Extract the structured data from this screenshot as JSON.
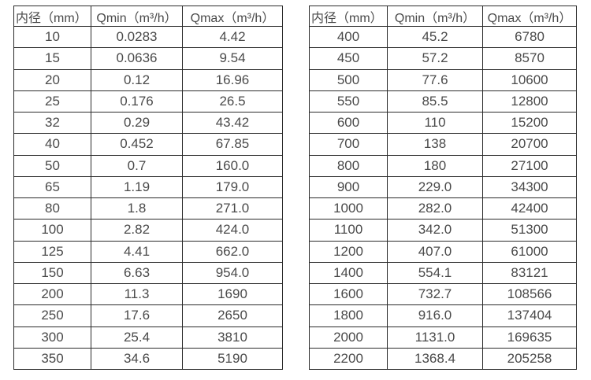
{
  "colors": {
    "background": "#ffffff",
    "table_border": "#2b2b2b",
    "text": "#4a4a4a"
  },
  "chart_data": [
    {
      "type": "table",
      "title": "",
      "columns": [
        "内径（mm）",
        "Qmin（m³/h）",
        "Qmax（m³/h）"
      ],
      "rows": [
        [
          "10",
          "0.0283",
          "4.42"
        ],
        [
          "15",
          "0.0636",
          "9.54"
        ],
        [
          "20",
          "0.12",
          "16.96"
        ],
        [
          "25",
          "0.176",
          "26.5"
        ],
        [
          "32",
          "0.29",
          "43.42"
        ],
        [
          "40",
          "0.452",
          "67.85"
        ],
        [
          "50",
          "0.7",
          "160.0"
        ],
        [
          "65",
          "1.19",
          "179.0"
        ],
        [
          "80",
          "1.8",
          "271.0"
        ],
        [
          "100",
          "2.82",
          "424.0"
        ],
        [
          "125",
          "4.41",
          "662.0"
        ],
        [
          "150",
          "6.63",
          "954.0"
        ],
        [
          "200",
          "11.3",
          "1690"
        ],
        [
          "250",
          "17.6",
          "2650"
        ],
        [
          "300",
          "25.4",
          "3810"
        ],
        [
          "350",
          "34.6",
          "5190"
        ]
      ]
    },
    {
      "type": "table",
      "title": "",
      "columns": [
        "内径（mm）",
        "Qmin（m³/h）",
        "Qmax（m³/h）"
      ],
      "rows": [
        [
          "400",
          "45.2",
          "6780"
        ],
        [
          "450",
          "57.2",
          "8570"
        ],
        [
          "500",
          "77.6",
          "10600"
        ],
        [
          "550",
          "85.5",
          "12800"
        ],
        [
          "600",
          "110",
          "15200"
        ],
        [
          "700",
          "138",
          "20700"
        ],
        [
          "800",
          "180",
          "27100"
        ],
        [
          "900",
          "229.0",
          "34300"
        ],
        [
          "1000",
          "282.0",
          "42400"
        ],
        [
          "1100",
          "342.0",
          "51300"
        ],
        [
          "1200",
          "407.0",
          "61000"
        ],
        [
          "1400",
          "554.1",
          "83121"
        ],
        [
          "1600",
          "732.7",
          "108566"
        ],
        [
          "1800",
          "916.0",
          "137404"
        ],
        [
          "2000",
          "1131.0",
          "169635"
        ],
        [
          "2200",
          "1368.4",
          "205258"
        ]
      ]
    }
  ]
}
